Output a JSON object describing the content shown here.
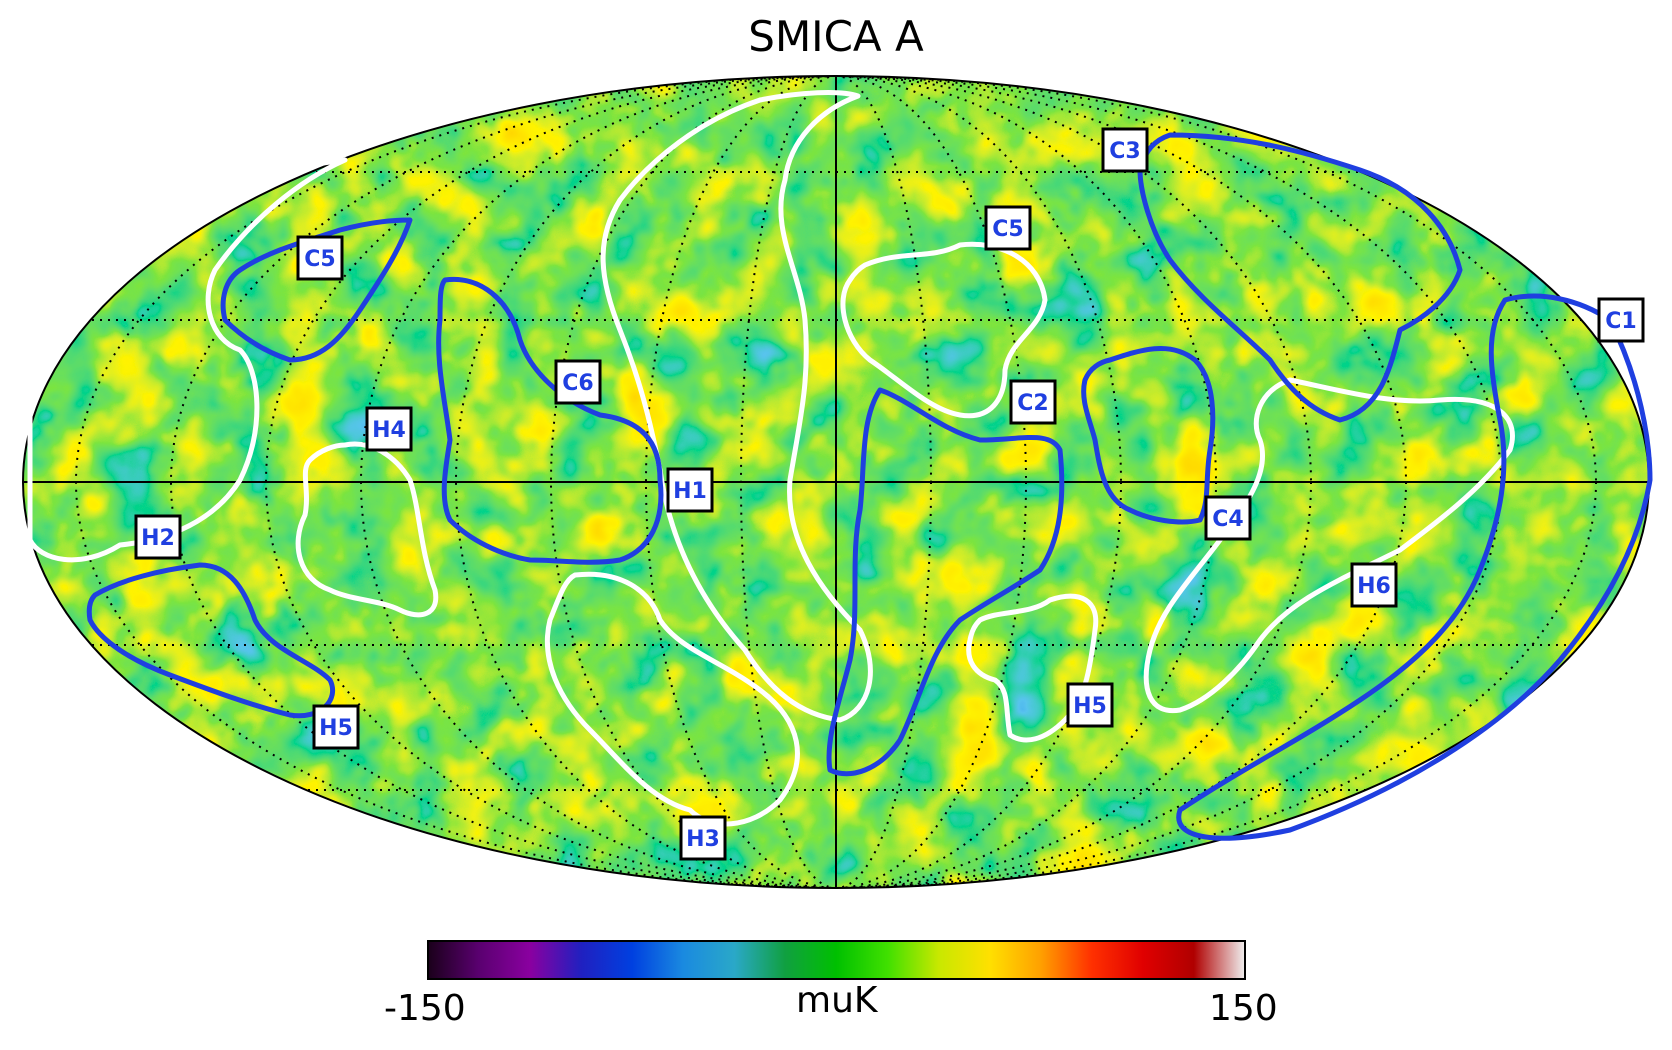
{
  "title": "SMICA A",
  "colorbar": {
    "min_label": "-150",
    "max_label": "150",
    "unit": "muK",
    "stops": [
      "#1a001a",
      "#5a0070",
      "#8a00a0",
      "#2020c0",
      "#0040e0",
      "#1a8ae0",
      "#2aa8c8",
      "#10a040",
      "#00c000",
      "#40e000",
      "#c8e800",
      "#ffe000",
      "#ffa000",
      "#ff3000",
      "#e00000",
      "#b00000",
      "#f0f0f0"
    ]
  },
  "colors": {
    "hot_contour": "#ffffff",
    "cold_contour": "#1f3fe0",
    "label_text": "#1f3fe0"
  },
  "regions": [
    {
      "id": "hot-1",
      "label": "H1",
      "type": "hot"
    },
    {
      "id": "hot-2",
      "label": "H2",
      "type": "hot"
    },
    {
      "id": "hot-3",
      "label": "H3",
      "type": "hot"
    },
    {
      "id": "hot-4",
      "label": "H4",
      "type": "hot"
    },
    {
      "id": "hot-5a",
      "label": "H5",
      "type": "hot"
    },
    {
      "id": "hot-5b",
      "label": "H5",
      "type": "hot"
    },
    {
      "id": "hot-6",
      "label": "H6",
      "type": "hot"
    },
    {
      "id": "cold-1",
      "label": "C1",
      "type": "cold"
    },
    {
      "id": "cold-2",
      "label": "C2",
      "type": "cold"
    },
    {
      "id": "cold-3",
      "label": "C3",
      "type": "cold"
    },
    {
      "id": "cold-4",
      "label": "C4",
      "type": "cold"
    },
    {
      "id": "cold-5a",
      "label": "C5",
      "type": "cold"
    },
    {
      "id": "cold-5b",
      "label": "C5",
      "type": "cold"
    },
    {
      "id": "cold-6",
      "label": "C6",
      "type": "cold"
    }
  ]
}
